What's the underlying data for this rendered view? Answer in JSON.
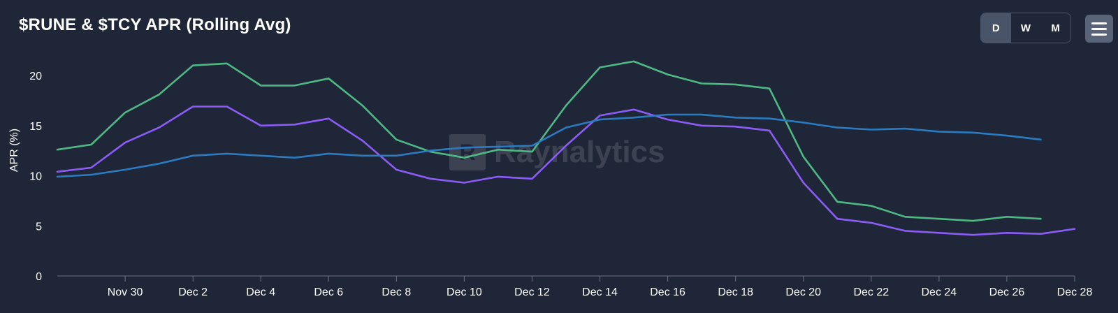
{
  "header": {
    "title": "$RUNE & $TCY APR (Rolling Avg)",
    "periods": [
      {
        "label": "D",
        "active": true
      },
      {
        "label": "W",
        "active": false
      },
      {
        "label": "M",
        "active": false
      }
    ],
    "menu_icon": "hamburger-menu-icon"
  },
  "watermark": {
    "logo_letter": "R",
    "text": "Raynalytics"
  },
  "colors": {
    "background": "#1f2637",
    "green": "#4fb985",
    "purple": "#8b5cf6",
    "blue": "#2b7bc0",
    "axis": "#6b7385",
    "text": "#ffffff"
  },
  "chart_data": {
    "type": "line",
    "ylabel": "APR (%)",
    "xlabel": "",
    "ylim": [
      0,
      23
    ],
    "yticks": [
      0,
      5,
      10,
      15,
      20
    ],
    "x_ticks": [
      "Nov 30",
      "Dec 2",
      "Dec 4",
      "Dec 6",
      "Dec 8",
      "Dec 10",
      "Dec 12",
      "Dec 14",
      "Dec 16",
      "Dec 18",
      "Dec 20",
      "Dec 22",
      "Dec 24",
      "Dec 26",
      "Dec 28"
    ],
    "x": [
      "Nov 28",
      "Nov 29",
      "Nov 30",
      "Dec 1",
      "Dec 2",
      "Dec 3",
      "Dec 4",
      "Dec 5",
      "Dec 6",
      "Dec 7",
      "Dec 8",
      "Dec 9",
      "Dec 10",
      "Dec 11",
      "Dec 12",
      "Dec 13",
      "Dec 14",
      "Dec 15",
      "Dec 16",
      "Dec 17",
      "Dec 18",
      "Dec 19",
      "Dec 20",
      "Dec 21",
      "Dec 22",
      "Dec 23",
      "Dec 24",
      "Dec 25",
      "Dec 26",
      "Dec 27",
      "Dec 28"
    ],
    "grid": false,
    "series": [
      {
        "color": "#4fb985",
        "values": [
          12.6,
          13.1,
          16.3,
          18.1,
          21.0,
          21.2,
          19.0,
          19.0,
          19.7,
          17.0,
          13.6,
          12.4,
          11.8,
          12.6,
          12.4,
          17.0,
          20.8,
          21.4,
          20.1,
          19.2,
          19.1,
          18.7,
          11.9,
          7.4,
          7.0,
          5.9,
          5.7,
          5.5,
          5.9,
          5.7,
          null
        ]
      },
      {
        "color": "#8b5cf6",
        "values": [
          10.4,
          10.8,
          13.3,
          14.8,
          16.9,
          16.9,
          15.0,
          15.1,
          15.7,
          13.5,
          10.6,
          9.7,
          9.3,
          9.9,
          9.7,
          13.0,
          16.0,
          16.6,
          15.6,
          15.0,
          14.9,
          14.5,
          9.3,
          5.7,
          5.3,
          4.5,
          4.3,
          4.1,
          4.3,
          4.2,
          4.7
        ]
      },
      {
        "color": "#2b7bc0",
        "values": [
          9.9,
          10.1,
          10.6,
          11.2,
          12.0,
          12.2,
          12.0,
          11.8,
          12.2,
          12.0,
          12.0,
          12.5,
          12.8,
          12.9,
          13.0,
          14.8,
          15.6,
          15.8,
          16.1,
          16.1,
          15.8,
          15.7,
          15.3,
          14.8,
          14.6,
          14.7,
          14.4,
          14.3,
          14.0,
          13.6,
          null
        ]
      }
    ]
  }
}
